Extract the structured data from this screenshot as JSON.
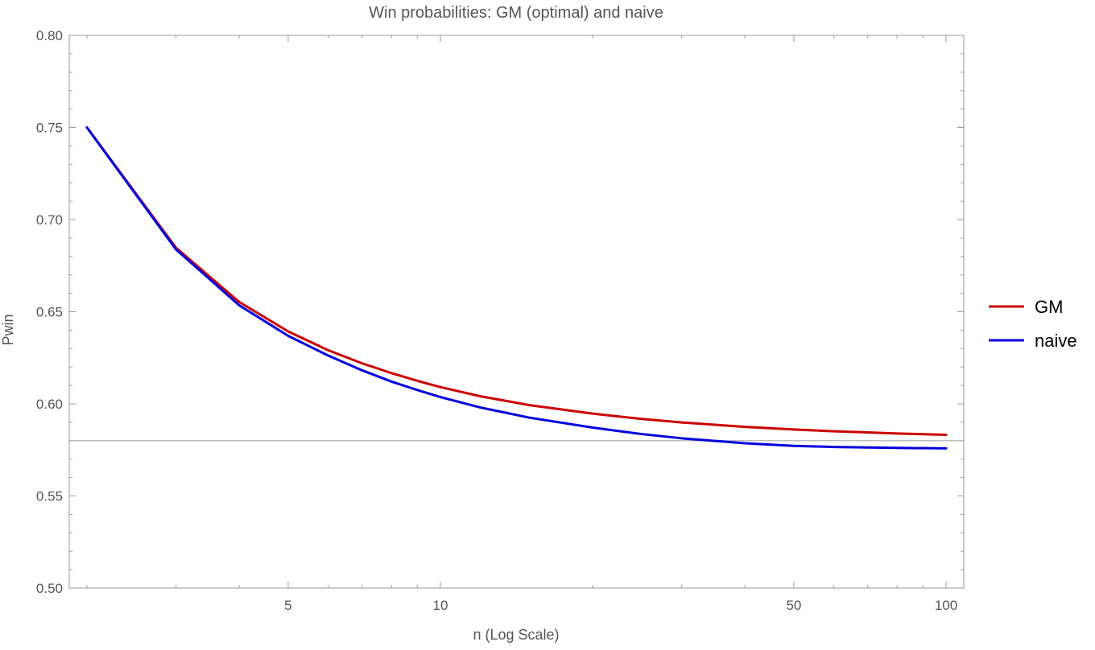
{
  "chart_data": {
    "type": "line",
    "title": "Win probabilities: GM (optimal) and naive",
    "xlabel": "n (Log Scale)",
    "ylabel": "Pwin",
    "x_scale": "log",
    "xlim": [
      2,
      100
    ],
    "ylim": [
      0.5,
      0.8
    ],
    "x_ticks": [
      5,
      10,
      50,
      100
    ],
    "x_tick_labels": [
      "5",
      "10",
      "50",
      "100"
    ],
    "y_ticks": [
      0.5,
      0.55,
      0.6,
      0.65,
      0.7,
      0.75,
      0.8
    ],
    "y_tick_labels": [
      "0.50",
      "0.55",
      "0.60",
      "0.65",
      "0.70",
      "0.75",
      "0.80"
    ],
    "reference_line": 0.58,
    "grid": false,
    "legend_position": "right",
    "x": [
      2,
      3,
      4,
      5,
      6,
      7,
      8,
      9,
      10,
      12,
      15,
      20,
      25,
      30,
      40,
      50,
      60,
      70,
      80,
      100
    ],
    "series": [
      {
        "name": "GM",
        "color": "#cc0000",
        "values": [
          0.75,
          0.6847,
          0.6553,
          0.6393,
          0.6291,
          0.622,
          0.6167,
          0.6125,
          0.6091,
          0.6041,
          0.5993,
          0.5947,
          0.5918,
          0.5899,
          0.5875,
          0.5861,
          0.5851,
          0.5845,
          0.5839,
          0.5832
        ]
      },
      {
        "name": "naive",
        "color": "#0000dd",
        "values": [
          0.75,
          0.6838,
          0.6535,
          0.6369,
          0.6262,
          0.6182,
          0.6121,
          0.6075,
          0.6037,
          0.598,
          0.5925,
          0.5871,
          0.5836,
          0.5813,
          0.5786,
          0.5772,
          0.5766,
          0.5763,
          0.5761,
          0.5758
        ]
      }
    ]
  }
}
